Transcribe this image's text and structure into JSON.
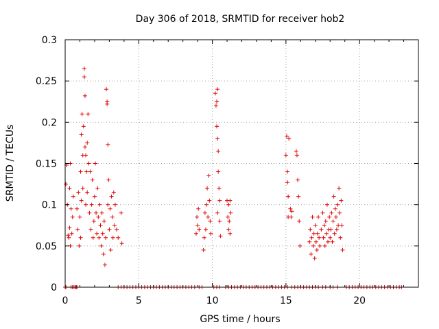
{
  "chart_data": {
    "type": "scatter",
    "title": "Day 306 of 2018, SRMTID for receiver hob2",
    "xlabel": "GPS time / hours",
    "ylabel": "SRMTID / TECUs",
    "xlim": [
      0,
      24
    ],
    "ylim": [
      0,
      0.3
    ],
    "x_ticks": [
      0,
      5,
      10,
      15,
      20
    ],
    "x_tick_labels": [
      "0",
      "5",
      "10",
      "15",
      "20"
    ],
    "y_ticks": [
      0,
      0.05,
      0.1,
      0.15,
      0.2,
      0.25,
      0.3
    ],
    "y_tick_labels": [
      "0",
      "0.05",
      "0.1",
      "0.15",
      "0.2",
      "0.25",
      "0.3"
    ],
    "grid": true,
    "marker": "+",
    "color": "#e00000",
    "series": [
      {
        "name": "SRMTID",
        "points": [
          [
            0.05,
            0.125
          ],
          [
            0.1,
            0.148
          ],
          [
            0.15,
            0.1
          ],
          [
            0.2,
            0.063
          ],
          [
            0.25,
            0.06
          ],
          [
            0.3,
            0.12
          ],
          [
            0.3,
            0.072
          ],
          [
            0.35,
            0.15
          ],
          [
            0.35,
            0.05
          ],
          [
            0.4,
            0.095
          ],
          [
            0.45,
            0.065
          ],
          [
            0.5,
            0.085
          ],
          [
            0.55,
            0.11
          ],
          [
            0.8,
            0.095
          ],
          [
            0.85,
            0.07
          ],
          [
            0.9,
            0.115
          ],
          [
            0.95,
            0.05
          ],
          [
            1.0,
            0.085
          ],
          [
            1.05,
            0.14
          ],
          [
            1.05,
            0.06
          ],
          [
            1.1,
            0.105
          ],
          [
            1.1,
            0.185
          ],
          [
            1.15,
            0.21
          ],
          [
            1.2,
            0.16
          ],
          [
            1.2,
            0.12
          ],
          [
            1.25,
            0.195
          ],
          [
            1.3,
            0.255
          ],
          [
            1.3,
            0.265
          ],
          [
            1.35,
            0.232
          ],
          [
            1.35,
            0.17
          ],
          [
            1.4,
            0.1
          ],
          [
            1.4,
            0.16
          ],
          [
            1.45,
            0.14
          ],
          [
            1.5,
            0.175
          ],
          [
            1.5,
            0.115
          ],
          [
            1.55,
            0.21
          ],
          [
            1.6,
            0.15
          ],
          [
            1.65,
            0.09
          ],
          [
            1.7,
            0.14
          ],
          [
            1.75,
            0.07
          ],
          [
            1.8,
            0.1
          ],
          [
            1.85,
            0.13
          ],
          [
            1.9,
            0.06
          ],
          [
            1.95,
            0.08
          ],
          [
            2.0,
            0.11
          ],
          [
            2.05,
            0.15
          ],
          [
            2.1,
            0.09
          ],
          [
            2.15,
            0.065
          ],
          [
            2.2,
            0.12
          ],
          [
            2.25,
            0.085
          ],
          [
            2.3,
            0.06
          ],
          [
            2.35,
            0.1
          ],
          [
            2.4,
            0.075
          ],
          [
            2.45,
            0.05
          ],
          [
            2.5,
            0.09
          ],
          [
            2.55,
            0.065
          ],
          [
            2.6,
            0.04
          ],
          [
            2.65,
            0.08
          ],
          [
            2.7,
            0.027
          ],
          [
            2.75,
            0.06
          ],
          [
            2.8,
            0.24
          ],
          [
            2.85,
            0.225
          ],
          [
            2.85,
            0.222
          ],
          [
            2.9,
            0.173
          ],
          [
            2.9,
            0.1
          ],
          [
            2.95,
            0.13
          ],
          [
            3.0,
            0.07
          ],
          [
            3.05,
            0.095
          ],
          [
            3.1,
            0.045
          ],
          [
            3.15,
            0.11
          ],
          [
            3.2,
            0.085
          ],
          [
            3.25,
            0.06
          ],
          [
            3.3,
            0.115
          ],
          [
            3.35,
            0.075
          ],
          [
            3.4,
            0.1
          ],
          [
            3.5,
            0.07
          ],
          [
            3.6,
            0.06
          ],
          [
            3.8,
            0.09
          ],
          [
            3.85,
            0.053
          ],
          [
            8.9,
            0.065
          ],
          [
            8.95,
            0.085
          ],
          [
            9.0,
            0.075
          ],
          [
            9.05,
            0.095
          ],
          [
            9.1,
            0.07
          ],
          [
            9.4,
            0.045
          ],
          [
            9.45,
            0.06
          ],
          [
            9.5,
            0.09
          ],
          [
            9.55,
            0.07
          ],
          [
            9.6,
            0.1
          ],
          [
            9.65,
            0.12
          ],
          [
            9.7,
            0.085
          ],
          [
            9.75,
            0.135
          ],
          [
            9.8,
            0.105
          ],
          [
            9.85,
            0.08
          ],
          [
            9.9,
            0.065
          ],
          [
            10.2,
            0.235
          ],
          [
            10.25,
            0.22
          ],
          [
            10.3,
            0.225
          ],
          [
            10.35,
            0.24
          ],
          [
            10.3,
            0.195
          ],
          [
            10.35,
            0.18
          ],
          [
            10.4,
            0.165
          ],
          [
            10.4,
            0.14
          ],
          [
            10.45,
            0.12
          ],
          [
            10.5,
            0.105
          ],
          [
            10.5,
            0.08
          ],
          [
            10.55,
            0.062
          ],
          [
            10.35,
            0.09
          ],
          [
            11.0,
            0.105
          ],
          [
            11.05,
            0.085
          ],
          [
            11.1,
            0.1
          ],
          [
            11.1,
            0.07
          ],
          [
            11.15,
            0.08
          ],
          [
            11.2,
            0.105
          ],
          [
            11.2,
            0.065
          ],
          [
            11.25,
            0.09
          ],
          [
            15.0,
            0.16
          ],
          [
            15.05,
            0.183
          ],
          [
            15.1,
            0.14
          ],
          [
            15.1,
            0.127
          ],
          [
            15.15,
            0.11
          ],
          [
            15.15,
            0.085
          ],
          [
            15.2,
            0.18
          ],
          [
            15.3,
            0.095
          ],
          [
            15.35,
            0.085
          ],
          [
            15.4,
            0.092
          ],
          [
            15.7,
            0.165
          ],
          [
            15.75,
            0.16
          ],
          [
            15.8,
            0.13
          ],
          [
            15.85,
            0.11
          ],
          [
            15.9,
            0.08
          ],
          [
            15.95,
            0.05
          ],
          [
            16.6,
            0.055
          ],
          [
            16.65,
            0.07
          ],
          [
            16.7,
            0.04
          ],
          [
            16.75,
            0.06
          ],
          [
            16.8,
            0.085
          ],
          [
            16.85,
            0.05
          ],
          [
            16.9,
            0.065
          ],
          [
            16.95,
            0.035
          ],
          [
            17.0,
            0.075
          ],
          [
            17.05,
            0.055
          ],
          [
            17.1,
            0.045
          ],
          [
            17.15,
            0.065
          ],
          [
            17.2,
            0.085
          ],
          [
            17.25,
            0.06
          ],
          [
            17.3,
            0.05
          ],
          [
            17.4,
            0.07
          ],
          [
            17.5,
            0.09
          ],
          [
            17.55,
            0.06
          ],
          [
            17.6,
            0.075
          ],
          [
            17.65,
            0.05
          ],
          [
            17.7,
            0.08
          ],
          [
            17.75,
            0.065
          ],
          [
            17.8,
            0.1
          ],
          [
            17.85,
            0.055
          ],
          [
            17.9,
            0.07
          ],
          [
            17.95,
            0.085
          ],
          [
            18.0,
            0.06
          ],
          [
            18.05,
            0.07
          ],
          [
            18.1,
            0.09
          ],
          [
            18.15,
            0.055
          ],
          [
            18.2,
            0.08
          ],
          [
            18.25,
            0.11
          ],
          [
            18.3,
            0.065
          ],
          [
            18.35,
            0.095
          ],
          [
            18.4,
            0.085
          ],
          [
            18.45,
            0.07
          ],
          [
            18.5,
            0.1
          ],
          [
            18.55,
            0.075
          ],
          [
            18.6,
            0.12
          ],
          [
            18.65,
            0.09
          ],
          [
            18.7,
            0.06
          ],
          [
            18.75,
            0.105
          ],
          [
            18.8,
            0.075
          ],
          [
            18.85,
            0.045
          ],
          [
            0.0,
            0
          ],
          [
            0.05,
            0
          ],
          [
            0.4,
            0
          ],
          [
            0.5,
            0
          ],
          [
            0.6,
            0
          ],
          [
            0.7,
            0
          ],
          [
            0.75,
            0
          ],
          [
            0.8,
            0
          ],
          [
            3.6,
            0
          ],
          [
            3.8,
            0
          ],
          [
            4.0,
            0
          ],
          [
            4.2,
            0
          ],
          [
            4.4,
            0
          ],
          [
            4.6,
            0
          ],
          [
            4.8,
            0
          ],
          [
            5.0,
            0
          ],
          [
            5.2,
            0
          ],
          [
            5.4,
            0
          ],
          [
            5.6,
            0
          ],
          [
            5.8,
            0
          ],
          [
            6.0,
            0
          ],
          [
            6.2,
            0
          ],
          [
            6.4,
            0
          ],
          [
            6.6,
            0
          ],
          [
            6.8,
            0
          ],
          [
            7.0,
            0
          ],
          [
            7.2,
            0
          ],
          [
            7.4,
            0
          ],
          [
            7.6,
            0
          ],
          [
            7.8,
            0
          ],
          [
            8.0,
            0
          ],
          [
            8.2,
            0
          ],
          [
            8.4,
            0
          ],
          [
            8.6,
            0
          ],
          [
            8.8,
            0
          ],
          [
            9.1,
            0
          ],
          [
            9.3,
            0
          ],
          [
            10.1,
            0
          ],
          [
            10.3,
            0
          ],
          [
            10.5,
            0
          ],
          [
            10.9,
            0
          ],
          [
            11.1,
            0
          ],
          [
            11.3,
            0
          ],
          [
            11.5,
            0
          ],
          [
            11.7,
            0
          ],
          [
            11.9,
            0
          ],
          [
            12.1,
            0
          ],
          [
            12.3,
            0
          ],
          [
            12.5,
            0
          ],
          [
            12.7,
            0
          ],
          [
            12.9,
            0
          ],
          [
            13.1,
            0
          ],
          [
            13.3,
            0
          ],
          [
            13.5,
            0
          ],
          [
            13.7,
            0
          ],
          [
            13.9,
            0
          ],
          [
            14.1,
            0
          ],
          [
            14.3,
            0
          ],
          [
            14.5,
            0
          ],
          [
            14.7,
            0
          ],
          [
            14.9,
            0
          ],
          [
            15.1,
            0
          ],
          [
            15.4,
            0
          ],
          [
            15.6,
            0
          ],
          [
            15.8,
            0
          ],
          [
            16.0,
            0
          ],
          [
            16.2,
            0
          ],
          [
            16.4,
            0
          ],
          [
            16.6,
            0
          ],
          [
            16.8,
            0
          ],
          [
            17.0,
            0
          ],
          [
            17.2,
            0
          ],
          [
            17.5,
            0
          ],
          [
            17.7,
            0
          ],
          [
            18.0,
            0
          ],
          [
            18.2,
            0
          ],
          [
            18.5,
            0
          ],
          [
            19.1,
            0
          ],
          [
            19.3,
            0
          ],
          [
            19.5,
            0
          ],
          [
            19.7,
            0
          ],
          [
            19.9,
            0
          ],
          [
            20.1,
            0
          ],
          [
            20.3,
            0
          ],
          [
            20.5,
            0
          ],
          [
            20.7,
            0
          ],
          [
            20.9,
            0
          ],
          [
            21.1,
            0
          ],
          [
            21.3,
            0
          ],
          [
            21.5,
            0
          ],
          [
            21.7,
            0
          ],
          [
            21.9,
            0
          ],
          [
            22.1,
            0
          ],
          [
            22.3,
            0
          ],
          [
            22.5,
            0
          ],
          [
            22.7,
            0
          ],
          [
            22.85,
            0
          ]
        ]
      }
    ]
  }
}
